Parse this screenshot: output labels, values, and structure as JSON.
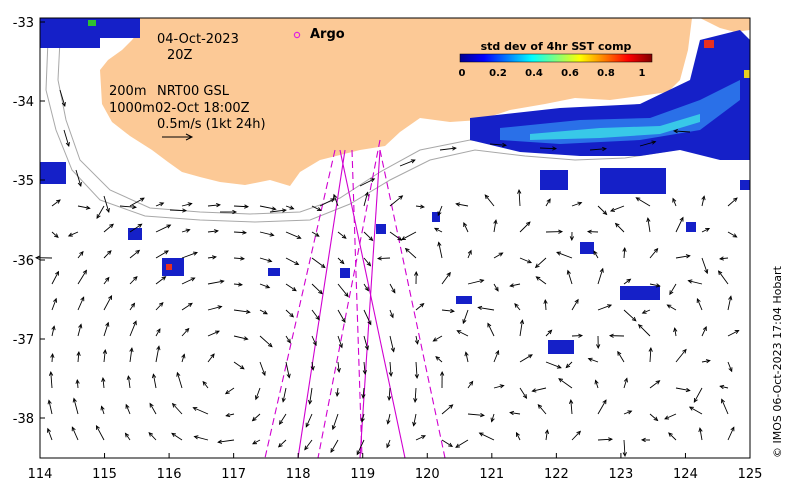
{
  "map": {
    "date_line": "04-Oct-2023",
    "time_line": "20Z",
    "legend_marker_label": "Argo",
    "altimetry": {
      "line1_left": "200m",
      "line1_right": "NRT00 GSL",
      "line2_left": "1000m",
      "line2_right": "02-Oct 18:00Z",
      "scale_label": "0.5m/s (1kt 24h)"
    },
    "colorbar": {
      "title": "std dev of 4hr SST comp",
      "ticks": [
        "0",
        "0.2",
        "0.4",
        "0.6",
        "0.8",
        "1"
      ]
    },
    "y_axis": {
      "ticks": [
        "-33",
        "-34",
        "-35",
        "-36",
        "-37",
        "-38"
      ]
    },
    "x_axis": {
      "ticks": [
        "114",
        "115",
        "116",
        "117",
        "118",
        "119",
        "120",
        "121",
        "122",
        "123",
        "124",
        "125"
      ]
    },
    "credit": "© IMOS 06-Oct-2023 17:04 Hobart",
    "colors": {
      "land": "#fcc996",
      "argo_marker": "#e020e0",
      "track_line": "#d000d0",
      "contour": "#a8a8a8",
      "sst_blue": "#1520c8"
    }
  }
}
